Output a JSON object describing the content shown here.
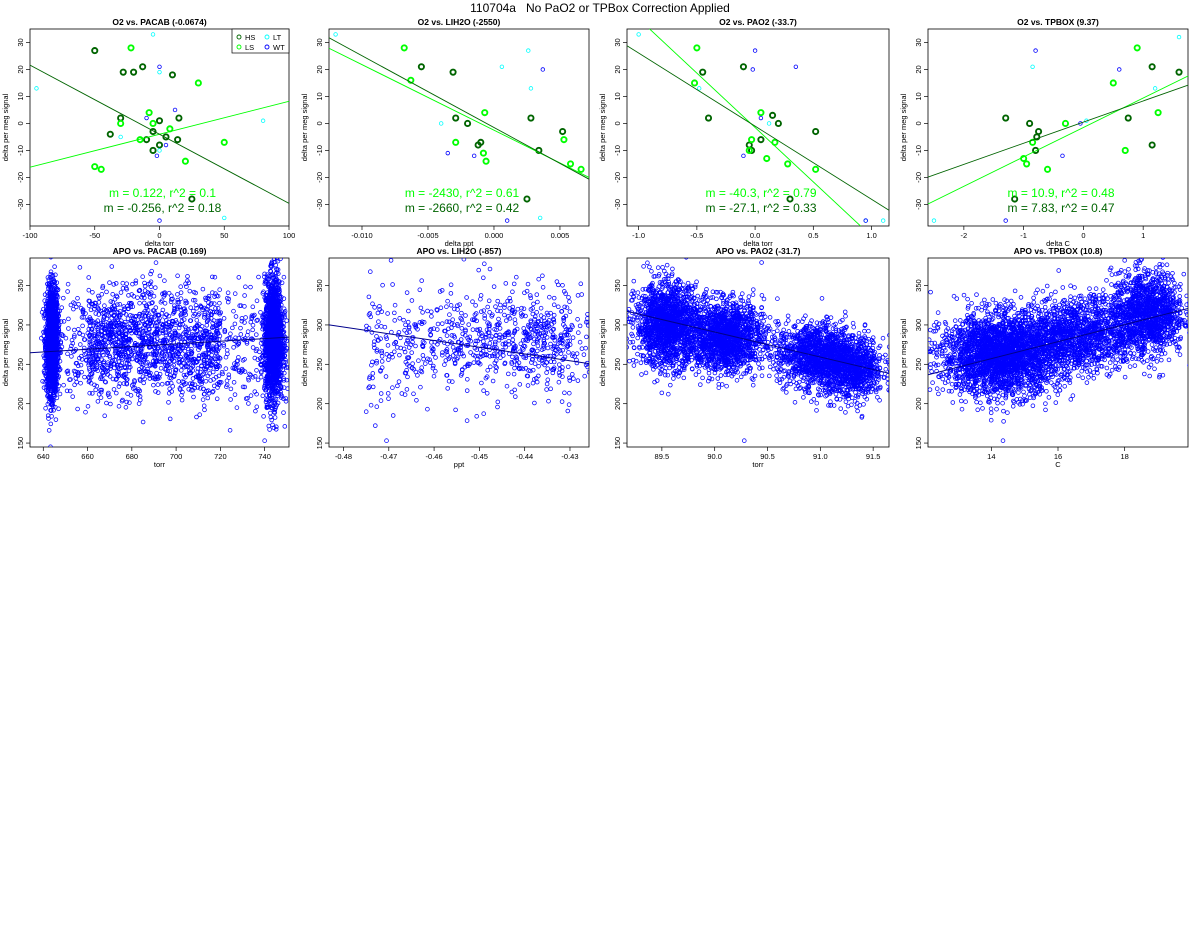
{
  "page_title": "110704a   No PaO2 or TPBox Correction Applied",
  "colors": {
    "HS": "#006400",
    "LS": "#00ff00",
    "LT": "#00ffff",
    "WT": "#0000ff",
    "apo": "#0000ff",
    "apo_fit": "#00008b"
  },
  "legend": {
    "entries": [
      {
        "label": "HS",
        "color": "#006400"
      },
      {
        "label": "LT",
        "color": "#00ffff"
      },
      {
        "label": "LS",
        "color": "#00ff00"
      },
      {
        "label": "WT",
        "color": "#0000ff"
      }
    ]
  },
  "chart_data": [
    {
      "id": "o2-pacab",
      "type": "scatter",
      "title": "O2 vs. PACAB (-0.0674)",
      "xlabel": "delta torr",
      "ylabel": "delta per meg signal",
      "xlim": [
        -100,
        100
      ],
      "ylim": [
        -38,
        35
      ],
      "xticks": [
        -100,
        -50,
        0,
        50,
        100
      ],
      "yticks": [
        -30,
        -20,
        -10,
        0,
        10,
        20,
        30
      ],
      "show_legend": true,
      "series": [
        {
          "name": "HS",
          "points": [
            [
              -50,
              27
            ],
            [
              -28,
              19
            ],
            [
              -20,
              19
            ],
            [
              -13,
              21
            ],
            [
              -5,
              -3
            ],
            [
              0,
              -8
            ],
            [
              0,
              1
            ],
            [
              15,
              2
            ],
            [
              14,
              -6
            ],
            [
              25,
              -28
            ],
            [
              -38,
              -4
            ],
            [
              -30,
              2
            ],
            [
              -5,
              -10
            ],
            [
              -10,
              -6
            ],
            [
              5,
              -5
            ],
            [
              10,
              18
            ]
          ]
        },
        {
          "name": "LS",
          "points": [
            [
              -50,
              -16
            ],
            [
              -45,
              -17
            ],
            [
              -22,
              28
            ],
            [
              -15,
              -6
            ],
            [
              -8,
              4
            ],
            [
              20,
              -14
            ],
            [
              30,
              15
            ],
            [
              50,
              -7
            ],
            [
              -30,
              0
            ],
            [
              -5,
              0
            ],
            [
              8,
              -2
            ]
          ]
        },
        {
          "name": "LT",
          "points": [
            [
              -95,
              13
            ],
            [
              -5,
              33
            ],
            [
              0,
              -10
            ],
            [
              80,
              1
            ],
            [
              0,
              19
            ],
            [
              50,
              -35
            ],
            [
              -30,
              -5
            ]
          ]
        },
        {
          "name": "WT",
          "points": [
            [
              0,
              21
            ],
            [
              -10,
              2
            ],
            [
              5,
              -8
            ],
            [
              0,
              -36
            ],
            [
              12,
              5
            ],
            [
              -2,
              -12
            ]
          ]
        }
      ],
      "fits": [
        {
          "series": "LS",
          "slope": 0.122,
          "intercept": -4.0,
          "label": "m = 0.122, r^2 = 0.1"
        },
        {
          "series": "HS",
          "slope": -0.256,
          "intercept": -4.0,
          "label": "m = -0.256, r^2 = 0.18"
        }
      ]
    },
    {
      "id": "o2-lih2o",
      "type": "scatter",
      "title": "O2 vs. LIH2O (-2550)",
      "xlabel": "delta ppt",
      "ylabel": "delta per meg signal",
      "xlim": [
        -0.0125,
        0.0072
      ],
      "ylim": [
        -38,
        35
      ],
      "xticks": [
        -0.01,
        -0.005,
        0.0,
        0.005
      ],
      "yticks": [
        -30,
        -20,
        -10,
        0,
        10,
        20,
        30
      ],
      "series": [
        {
          "name": "HS",
          "points": [
            [
              -0.0055,
              21
            ],
            [
              -0.0031,
              19
            ],
            [
              -0.0029,
              2
            ],
            [
              -0.0012,
              -8
            ],
            [
              -0.001,
              -7
            ],
            [
              0.0028,
              2
            ],
            [
              0.0034,
              -10
            ],
            [
              0.0025,
              -28
            ],
            [
              0.0052,
              -3
            ],
            [
              -0.002,
              0
            ]
          ]
        },
        {
          "name": "LS",
          "points": [
            [
              -0.0068,
              28
            ],
            [
              -0.0063,
              16
            ],
            [
              -0.0029,
              -7
            ],
            [
              -0.0007,
              4
            ],
            [
              -0.0008,
              -11
            ],
            [
              -0.0006,
              -14
            ],
            [
              0.0053,
              -6
            ],
            [
              0.0058,
              -15
            ],
            [
              0.0066,
              -17
            ]
          ]
        },
        {
          "name": "LT",
          "points": [
            [
              -0.012,
              33
            ],
            [
              0.0026,
              27
            ],
            [
              0.0028,
              13
            ],
            [
              0.0006,
              21
            ],
            [
              0.0035,
              -35
            ],
            [
              -0.004,
              0
            ]
          ]
        },
        {
          "name": "WT",
          "points": [
            [
              -0.0015,
              -12
            ],
            [
              0.0037,
              20
            ],
            [
              -0.0035,
              -11
            ],
            [
              0.001,
              -36
            ]
          ]
        }
      ],
      "fits": [
        {
          "series": "LS",
          "slope": -2430,
          "intercept": -2.5,
          "label": "m = -2430, r^2 = 0.61"
        },
        {
          "series": "HS",
          "slope": -2660,
          "intercept": -1.5,
          "label": "m = -2660, r^2 = 0.42"
        }
      ]
    },
    {
      "id": "o2-pao2",
      "type": "scatter",
      "title": "O2 vs. PAO2 (-33.7)",
      "xlabel": "delta torr",
      "ylabel": "delta per meg signal",
      "xlim": [
        -1.1,
        1.15
      ],
      "ylim": [
        -38,
        35
      ],
      "xticks": [
        -1.0,
        -0.5,
        0.0,
        0.5,
        1.0
      ],
      "yticks": [
        -30,
        -20,
        -10,
        0,
        10,
        20,
        30
      ],
      "series": [
        {
          "name": "HS",
          "points": [
            [
              -0.45,
              19
            ],
            [
              -0.1,
              21
            ],
            [
              -0.4,
              2
            ],
            [
              0.15,
              3
            ],
            [
              -0.05,
              -8
            ],
            [
              -0.03,
              -10
            ],
            [
              0.05,
              -6
            ],
            [
              0.3,
              -28
            ],
            [
              0.52,
              -3
            ],
            [
              0.2,
              0
            ]
          ]
        },
        {
          "name": "LS",
          "points": [
            [
              -0.5,
              28
            ],
            [
              -0.52,
              15
            ],
            [
              0.05,
              4
            ],
            [
              0.17,
              -7
            ],
            [
              -0.03,
              -6
            ],
            [
              0.1,
              -13
            ],
            [
              0.28,
              -15
            ],
            [
              0.52,
              -17
            ],
            [
              -0.05,
              -10
            ]
          ]
        },
        {
          "name": "LT",
          "points": [
            [
              -1.0,
              33
            ],
            [
              -0.48,
              13
            ],
            [
              0.95,
              -36
            ],
            [
              1.1,
              -36
            ],
            [
              0.12,
              0
            ]
          ]
        },
        {
          "name": "WT",
          "points": [
            [
              0.0,
              27
            ],
            [
              -0.02,
              20
            ],
            [
              0.35,
              21
            ],
            [
              -0.1,
              -12
            ],
            [
              0.05,
              2
            ],
            [
              0.95,
              -36
            ]
          ]
        }
      ],
      "fits": [
        {
          "series": "LS",
          "slope": -40.3,
          "intercept": -1.5,
          "label": "m = -40.3, r^2 = 0.79"
        },
        {
          "series": "HS",
          "slope": -27.1,
          "intercept": -1.0,
          "label": "m = -27.1, r^2 = 0.33"
        }
      ]
    },
    {
      "id": "o2-tpbox",
      "type": "scatter",
      "title": "O2 vs. TPBOX (9.37)",
      "xlabel": "delta C",
      "ylabel": "delta per meg signal",
      "xlim": [
        -2.6,
        1.75
      ],
      "ylim": [
        -38,
        35
      ],
      "xticks": [
        -2,
        -1,
        0,
        1
      ],
      "yticks": [
        -30,
        -20,
        -10,
        0,
        10,
        20,
        30
      ],
      "series": [
        {
          "name": "HS",
          "points": [
            [
              -1.3,
              2
            ],
            [
              -1.15,
              -28
            ],
            [
              -0.75,
              -3
            ],
            [
              -0.78,
              -5
            ],
            [
              -0.8,
              -10
            ],
            [
              0.75,
              2
            ],
            [
              1.15,
              21
            ],
            [
              1.15,
              -8
            ],
            [
              1.6,
              19
            ],
            [
              -0.9,
              0
            ]
          ]
        },
        {
          "name": "LS",
          "points": [
            [
              -1.0,
              -13
            ],
            [
              -0.95,
              -15
            ],
            [
              -0.85,
              -7
            ],
            [
              -0.6,
              -17
            ],
            [
              0.5,
              15
            ],
            [
              0.7,
              -10
            ],
            [
              0.9,
              28
            ],
            [
              1.25,
              4
            ],
            [
              -0.3,
              0
            ]
          ]
        },
        {
          "name": "LT",
          "points": [
            [
              -2.5,
              -36
            ],
            [
              -0.85,
              21
            ],
            [
              1.6,
              32
            ],
            [
              0.05,
              1
            ],
            [
              1.2,
              13
            ]
          ]
        },
        {
          "name": "WT",
          "points": [
            [
              -0.8,
              27
            ],
            [
              -1.3,
              -36
            ],
            [
              0.6,
              20
            ],
            [
              -0.35,
              -12
            ],
            [
              -0.05,
              0
            ]
          ]
        }
      ],
      "fits": [
        {
          "series": "LS",
          "slope": 10.9,
          "intercept": -1.5,
          "label": "m = 10.9, r^2 = 0.48"
        },
        {
          "series": "HS",
          "slope": 7.83,
          "intercept": 0.5,
          "label": "m = 7.83, r^2 = 0.47"
        }
      ]
    },
    {
      "id": "apo-pacab",
      "type": "scatter",
      "title": "APO vs. PACAB (0.169)",
      "xlabel": "torr",
      "ylabel": "delta per meg signal",
      "xlim": [
        634,
        751
      ],
      "ylim": [
        145,
        385
      ],
      "xticks": [
        640,
        660,
        680,
        700,
        720,
        740
      ],
      "yticks": [
        150,
        200,
        250,
        300,
        350
      ],
      "n_points": 5200,
      "clusters": [
        {
          "weight": 0.32,
          "x": [
            644,
            1.3
          ],
          "y": [
            278,
            33
          ]
        },
        {
          "weight": 0.34,
          "x": [
            744,
            2.0
          ],
          "y": [
            283,
            37
          ]
        },
        {
          "weight": 0.15,
          "x": [
            640,
            750
          ],
          "y": [
            272,
            36
          ]
        },
        {
          "weight": 0.1,
          "x": [
            660,
            690
          ],
          "y": [
            282,
            33
          ]
        },
        {
          "weight": 0.09,
          "x": [
            690,
            720
          ],
          "y": [
            278,
            34
          ]
        }
      ],
      "outliers": [
        [
          740,
          153
        ],
        [
          745,
          376
        ],
        [
          644,
          362
        ],
        [
          746,
          381
        ]
      ],
      "fit": {
        "slope": 0.169,
        "intercept": 157.6
      }
    },
    {
      "id": "apo-lih2o",
      "type": "scatter",
      "title": "APO vs. LIH2O (-857)",
      "xlabel": "ppt",
      "ylabel": "delta per meg signal",
      "xlim": [
        -0.4832,
        -0.4258
      ],
      "ylim": [
        145,
        385
      ],
      "xticks": [
        -0.48,
        -0.47,
        -0.46,
        -0.45,
        -0.44,
        -0.43
      ],
      "yticks": [
        150,
        200,
        250,
        300,
        350
      ],
      "n_points": 5200,
      "clusters": [
        {
          "weight": 0.48,
          "x": [
            -0.4575,
            0.0065
          ],
          "y": [
            283,
            28
          ]
        },
        {
          "weight": 0.42,
          "x": [
            -0.4425,
            0.0045
          ],
          "y": [
            268,
            30
          ]
        },
        {
          "weight": 0.1,
          "x": [
            -0.475,
            -0.43
          ],
          "y": [
            275,
            34
          ]
        }
      ],
      "outliers": [
        [
          -0.4705,
          153
        ],
        [
          -0.4695,
          382
        ]
      ],
      "fit": {
        "slope": -857,
        "intercept": -114
      }
    },
    {
      "id": "apo-pao2",
      "type": "scatter",
      "title": "APO vs. PAO2 (-31.7)",
      "xlabel": "torr",
      "ylabel": "delta per meg signal",
      "xlim": [
        89.17,
        91.65
      ],
      "ylim": [
        145,
        385
      ],
      "xticks": [
        89.5,
        90.0,
        90.5,
        91.0,
        91.5
      ],
      "yticks": [
        150,
        200,
        250,
        300,
        350
      ],
      "n_points": 5200,
      "clusters": [
        {
          "weight": 0.3,
          "x": [
            89.55,
            0.15
          ],
          "y": [
            300,
            26
          ]
        },
        {
          "weight": 0.3,
          "x": [
            90.1,
            0.18
          ],
          "y": [
            285,
            22
          ]
        },
        {
          "weight": 0.22,
          "x": [
            90.95,
            0.18
          ],
          "y": [
            262,
            20
          ]
        },
        {
          "weight": 0.18,
          "x": [
            91.3,
            0.15
          ],
          "y": [
            245,
            20
          ]
        }
      ],
      "outliers": [
        [
          90.28,
          153
        ],
        [
          89.55,
          376
        ]
      ],
      "fit": {
        "slope": -31.7,
        "intercept": 3144
      }
    },
    {
      "id": "apo-tpbox",
      "type": "scatter",
      "title": "APO vs. TPBOX (10.8)",
      "xlabel": "C",
      "ylabel": "delta per meg signal",
      "xlim": [
        12.1,
        19.9
      ],
      "ylim": [
        145,
        385
      ],
      "xticks": [
        14,
        16,
        18
      ],
      "yticks": [
        150,
        200,
        250,
        300,
        350
      ],
      "n_points": 5200,
      "clusters": [
        {
          "weight": 0.5,
          "x": [
            14.3,
            0.9
          ],
          "y": [
            262,
            25
          ]
        },
        {
          "weight": 0.25,
          "x": [
            16.6,
            0.9
          ],
          "y": [
            288,
            24
          ]
        },
        {
          "weight": 0.25,
          "x": [
            18.7,
            0.55
          ],
          "y": [
            315,
            26
          ]
        }
      ],
      "outliers": [
        [
          14.35,
          153
        ],
        [
          18.0,
          382
        ]
      ],
      "fit": {
        "slope": 10.8,
        "intercept": 106
      }
    }
  ]
}
